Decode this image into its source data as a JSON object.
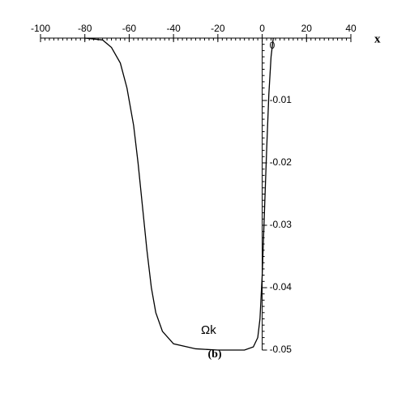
{
  "chart_data": {
    "type": "line",
    "x_label": "x",
    "caption": "(b)",
    "annotation": "Ωk",
    "x": [
      -80,
      -72,
      -68,
      -64,
      -61,
      -58,
      -56,
      -54,
      -52,
      -50,
      -48,
      -45,
      -40,
      -30,
      -20,
      -8,
      -4,
      -2,
      -1,
      0,
      1,
      2,
      3,
      4,
      5
    ],
    "values": [
      0,
      -0.0003,
      -0.0015,
      -0.004,
      -0.008,
      -0.014,
      -0.02,
      -0.027,
      -0.034,
      -0.04,
      -0.044,
      -0.047,
      -0.049,
      -0.0498,
      -0.05,
      -0.05,
      -0.0495,
      -0.048,
      -0.045,
      -0.038,
      -0.028,
      -0.018,
      -0.009,
      -0.003,
      0
    ],
    "color": "#000000",
    "xlim": [
      -100,
      40
    ],
    "xticks": [
      -100,
      -80,
      -60,
      -40,
      -20,
      0,
      20,
      40
    ],
    "ylim": [
      -0.05,
      0
    ],
    "yticks": [
      0,
      -0.01,
      -0.02,
      -0.03,
      -0.04,
      -0.05
    ],
    "grid": false
  }
}
